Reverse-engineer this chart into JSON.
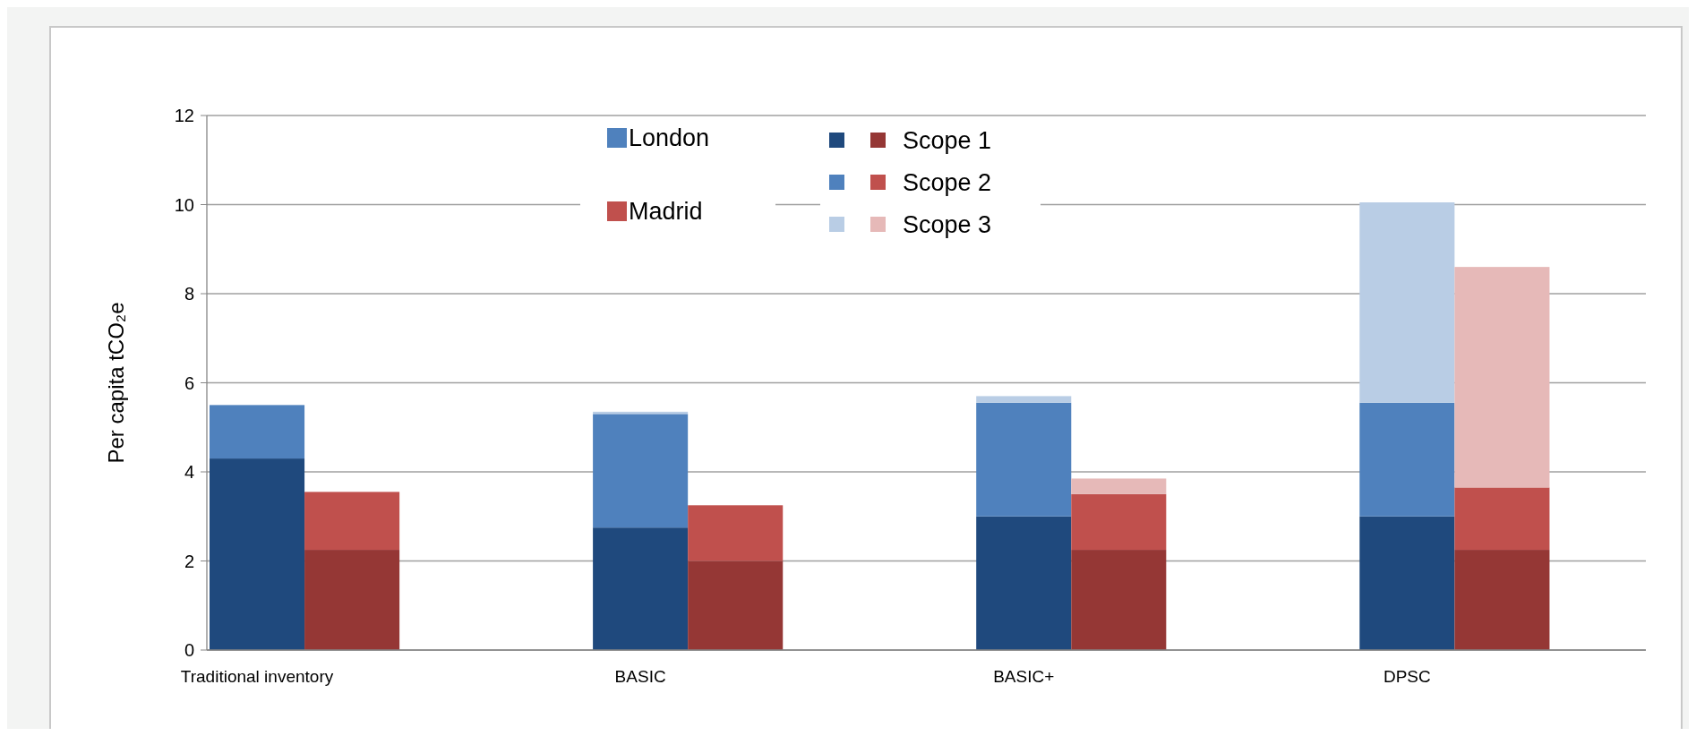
{
  "chart_data": {
    "type": "bar",
    "stacked": true,
    "ylabel": "Per capita tCO₂e",
    "categories": [
      "Traditional inventory",
      null,
      "BASIC",
      null,
      "BASIC+",
      null,
      "DPSC",
      null
    ],
    "series": [
      {
        "name": "Scope 1",
        "colors": [
          "#1f497d",
          "#953735",
          "#1f497d",
          "#953735",
          "#1f497d",
          "#953735",
          "#1f497d",
          "#953735"
        ],
        "values": [
          4.3,
          2.25,
          2.75,
          2.0,
          3.0,
          2.25,
          3.0,
          2.25
        ]
      },
      {
        "name": "Scope 2",
        "colors": [
          "#4f81bd",
          "#c0504d",
          "#4f81bd",
          "#c0504d",
          "#4f81bd",
          "#c0504d",
          "#4f81bd",
          "#c0504d"
        ],
        "values": [
          1.2,
          1.3,
          2.55,
          1.25,
          2.55,
          1.25,
          2.55,
          1.4
        ]
      },
      {
        "name": "Scope 3",
        "colors": [
          "#b9cde5",
          "#e6b9b8",
          "#b9cde5",
          null,
          "#b9cde5",
          "#e6b9b8",
          "#b9cde5",
          "#e6b9b8"
        ],
        "values": [
          null,
          null,
          0.05,
          null,
          0.15,
          0.35,
          4.5,
          4.95
        ]
      }
    ],
    "annotations": [
      "London",
      "Madrid"
    ],
    "ylim": [
      0,
      12
    ],
    "yticks": [
      0,
      2,
      4,
      6,
      8,
      10,
      12
    ],
    "grid": "y",
    "legend": "top"
  }
}
